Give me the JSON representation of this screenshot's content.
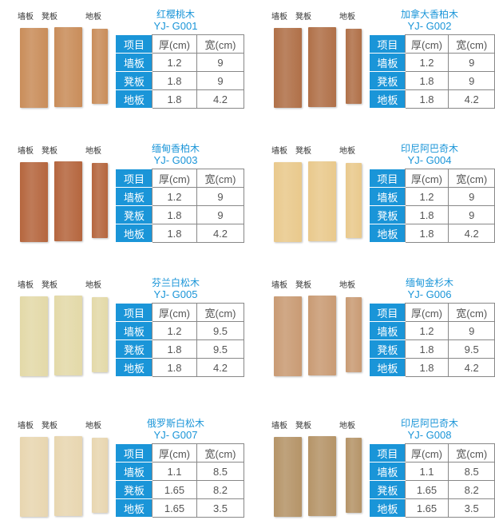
{
  "board_labels": [
    "墙板",
    "凳板",
    "地板"
  ],
  "table_header": [
    "项目",
    "厚(cm)",
    "宽(cm)"
  ],
  "row_labels": [
    "墙板",
    "凳板",
    "地板"
  ],
  "products": [
    {
      "name": "红樱桃木",
      "code": "YJ- G001",
      "thickness": [
        "1.2",
        "1.8",
        "1.8"
      ],
      "width": [
        "9",
        "9",
        "4.2"
      ],
      "color": "#c98d5a"
    },
    {
      "name": "加拿大香柏木",
      "code": "YJ- G002",
      "thickness": [
        "1.2",
        "1.8",
        "1.8"
      ],
      "width": [
        "9",
        "9",
        "4.2"
      ],
      "color": "#b07048"
    },
    {
      "name": "缅甸香柏木",
      "code": "YJ- G003",
      "thickness": [
        "1.2",
        "1.8",
        "1.8"
      ],
      "width": [
        "9",
        "9",
        "4.2"
      ],
      "color": "#b5663e"
    },
    {
      "name": "印尼阿巴奇木",
      "code": "YJ- G004",
      "thickness": [
        "1.2",
        "1.8",
        "1.8"
      ],
      "width": [
        "9",
        "9",
        "4.2"
      ],
      "color": "#e9c98c"
    },
    {
      "name": "芬兰白松木",
      "code": "YJ- G005",
      "thickness": [
        "1.2",
        "1.8",
        "1.8"
      ],
      "width": [
        "9.5",
        "9.5",
        "4.2"
      ],
      "color": "#e3d9a8"
    },
    {
      "name": "缅甸金杉木",
      "code": "YJ- G006",
      "thickness": [
        "1.2",
        "1.8",
        "1.8"
      ],
      "width": [
        "9",
        "9.5",
        "4.2"
      ],
      "color": "#c99b74"
    },
    {
      "name": "俄罗斯白松木",
      "code": "YJ- G007",
      "thickness": [
        "1.1",
        "1.65",
        "1.65"
      ],
      "width": [
        "8.5",
        "8.2",
        "3.5"
      ],
      "color": "#e8d6b0"
    },
    {
      "name": "印尼阿巴奇木",
      "code": "YJ- G008",
      "thickness": [
        "1.1",
        "1.65",
        "1.65"
      ],
      "width": [
        "8.5",
        "8.2",
        "3.5"
      ],
      "color": "#b59468"
    }
  ]
}
